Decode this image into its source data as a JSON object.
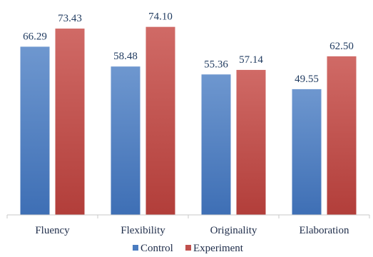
{
  "chart_data": {
    "type": "bar",
    "title": "",
    "xlabel": "",
    "ylabel": "",
    "ylim": [
      0,
      80
    ],
    "grid": false,
    "legend_position": "bottom",
    "categories": [
      "Fluency",
      "Flexibility",
      "Originality",
      "Elaboration"
    ],
    "series": [
      {
        "name": "Control",
        "color": "#4a7cc0",
        "values": [
          66.29,
          58.48,
          55.36,
          49.55
        ],
        "labels": [
          "66.29",
          "58.48",
          "55.36",
          "49.55"
        ]
      },
      {
        "name": "Experiment",
        "color": "#c0504d",
        "values": [
          73.43,
          74.1,
          57.14,
          62.5
        ],
        "labels": [
          "73.43",
          "74.10",
          "57.14",
          "62.50"
        ]
      }
    ]
  }
}
